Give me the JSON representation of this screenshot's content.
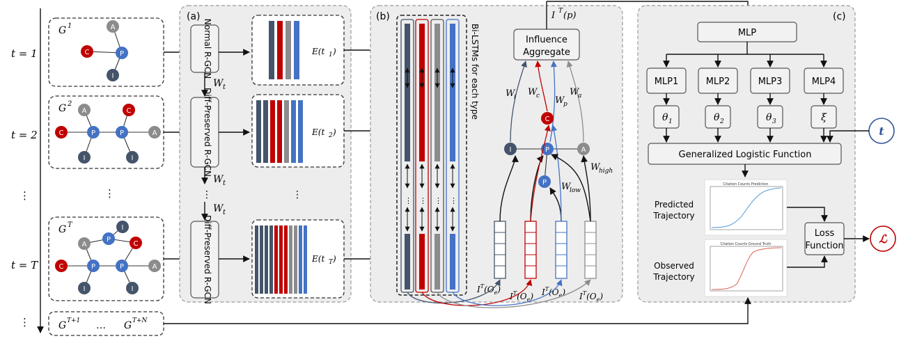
{
  "time_axis": {
    "t1": "t = 1",
    "t2": "t = 2",
    "tdots": "⋮",
    "tT": "t = T",
    "tdots2": "⋮"
  },
  "graphs": {
    "g1": "G",
    "g1_sup": "1",
    "g2": "G",
    "g2_sup": "2",
    "gdots": "⋮",
    "gT": "G",
    "gT_sup": "T",
    "future_g1": "G",
    "future_g1_sup": "T+1",
    "future_dots": "…",
    "future_g2": "G",
    "future_g2_sup": "T+N"
  },
  "node_labels": {
    "author": "A",
    "paper": "P",
    "concept": "C",
    "institution": "I"
  },
  "panel_a": {
    "label": "(a)",
    "normal_rgcn": "Normal R-GCN",
    "diff_rgcn_1": "Diff-Preserved R-GCN",
    "diff_rgcn_2": "Diff-Preserved R-GCN",
    "wt_1": "W",
    "wt_2": "W",
    "wt_3": "W",
    "wt_sub": "t",
    "vdots": "⋮",
    "vdots2": "⋮",
    "e1": "E(t",
    "e1_sub": "1",
    "e2": "E(t",
    "e2_sub": "2",
    "eT": "E(t",
    "eT_sub": "T",
    "close": ")"
  },
  "panel_b": {
    "label": "(b)",
    "bilstm": "Bi-LSTMs for each type",
    "influence_1": "Influence",
    "influence_2": "Aggregate",
    "itp": "I",
    "itp_sup": "T",
    "itp_tail": "(p)",
    "wi": "W",
    "wi_sub": "i",
    "wc": "W",
    "wc_sub": "c",
    "wp": "W",
    "wp_sub": "p",
    "wa": "W",
    "wa_sub": "a",
    "wlow": "W",
    "wlow_sub": "low",
    "whigh": "W",
    "whigh_sub": "high",
    "ite": "I",
    "ite_sup": "T",
    "ite_tail": "(O",
    "ite_sub": "e",
    "ite_close": ")"
  },
  "panel_c": {
    "label": "(c)",
    "mlp": "MLP",
    "mlp1": "MLP1",
    "mlp2": "MLP2",
    "mlp3": "MLP3",
    "mlp4": "MLP4",
    "theta": "θ",
    "theta1_sub": "1",
    "theta2_sub": "2",
    "theta3_sub": "3",
    "xi": "ξ",
    "glf": "Generalized Logistic Function",
    "t_node": "t",
    "predicted_1": "Predicted",
    "predicted_2": "Trajectory",
    "observed_1": "Observed",
    "observed_2": "Trajectory",
    "plot1_title": "Citation Counts Prediction",
    "plot2_title": "Citation Counts Ground Truth",
    "loss_1": "Loss",
    "loss_2": "Function",
    "loss_node": "ℒ"
  },
  "colors": {
    "author": "#8c8c8c",
    "paper": "#4472c4",
    "concept": "#c00000",
    "institution": "#44546a",
    "pred_curve": "#5b9bd5",
    "truth_curve": "#e06050"
  }
}
